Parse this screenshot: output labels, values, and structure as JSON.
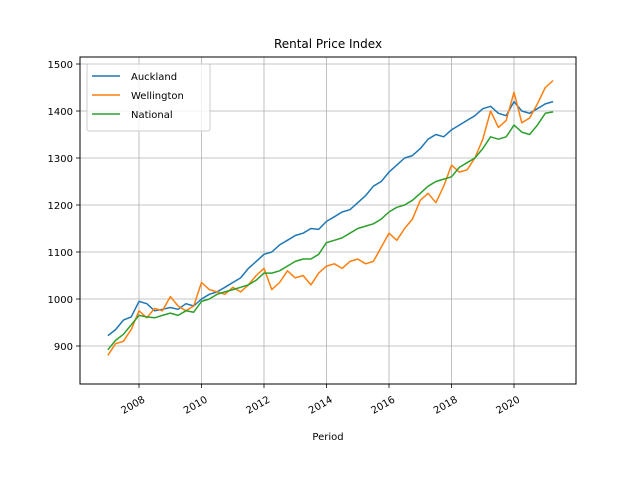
{
  "chart_data": {
    "type": "line",
    "title": "Rental Price Index",
    "xlabel": "Period",
    "ylabel": "",
    "xlim": [
      2006.6,
      2021.7
    ],
    "ylim": [
      823,
      1508
    ],
    "grid": true,
    "legend_position": "top-left",
    "x_ticks": [
      2008,
      2010,
      2012,
      2014,
      2016,
      2018,
      2020
    ],
    "x_tick_labels": [
      "2008",
      "2010",
      "2012",
      "2014",
      "2016",
      "2018",
      "2020"
    ],
    "y_ticks": [
      900,
      1000,
      1100,
      1200,
      1300,
      1400,
      1500
    ],
    "y_tick_labels": [
      "900",
      "1000",
      "1100",
      "1200",
      "1300",
      "1400",
      "1500"
    ],
    "x": [
      2007.0,
      2007.25,
      2007.5,
      2007.75,
      2008.0,
      2008.25,
      2008.5,
      2008.75,
      2009.0,
      2009.25,
      2009.5,
      2009.75,
      2010.0,
      2010.25,
      2010.5,
      2010.75,
      2011.0,
      2011.25,
      2011.5,
      2011.75,
      2012.0,
      2012.25,
      2012.5,
      2012.75,
      2013.0,
      2013.25,
      2013.5,
      2013.75,
      2014.0,
      2014.25,
      2014.5,
      2014.75,
      2015.0,
      2015.25,
      2015.5,
      2015.75,
      2016.0,
      2016.25,
      2016.5,
      2016.75,
      2017.0,
      2017.25,
      2017.5,
      2017.75,
      2018.0,
      2018.25,
      2018.5,
      2018.75,
      2019.0,
      2019.25,
      2019.5,
      2019.75,
      2020.0,
      2020.25,
      2020.5,
      2020.75,
      2021.0,
      2021.25
    ],
    "series": [
      {
        "name": "Auckland",
        "color": "#1f77b4",
        "values": [
          922,
          935,
          955,
          962,
          995,
          990,
          975,
          978,
          982,
          978,
          990,
          985,
          1000,
          1010,
          1015,
          1025,
          1035,
          1045,
          1065,
          1080,
          1095,
          1100,
          1115,
          1125,
          1135,
          1140,
          1150,
          1148,
          1165,
          1175,
          1185,
          1190,
          1205,
          1220,
          1240,
          1250,
          1270,
          1285,
          1300,
          1305,
          1320,
          1340,
          1350,
          1345,
          1360,
          1370,
          1380,
          1390,
          1405,
          1410,
          1395,
          1390,
          1420,
          1400,
          1395,
          1405,
          1415,
          1420
        ]
      },
      {
        "name": "Wellington",
        "color": "#ff7f0e",
        "values": [
          880,
          905,
          910,
          935,
          975,
          960,
          980,
          975,
          1005,
          985,
          975,
          985,
          1035,
          1020,
          1015,
          1010,
          1025,
          1015,
          1030,
          1050,
          1065,
          1020,
          1035,
          1060,
          1045,
          1050,
          1030,
          1055,
          1070,
          1075,
          1065,
          1080,
          1085,
          1075,
          1080,
          1110,
          1140,
          1125,
          1150,
          1170,
          1210,
          1225,
          1205,
          1240,
          1285,
          1270,
          1275,
          1300,
          1340,
          1400,
          1365,
          1380,
          1440,
          1375,
          1385,
          1415,
          1450,
          1465
        ]
      },
      {
        "name": "National",
        "color": "#2ca02c",
        "values": [
          892,
          912,
          925,
          945,
          965,
          962,
          960,
          965,
          970,
          965,
          975,
          972,
          995,
          1000,
          1010,
          1015,
          1020,
          1025,
          1030,
          1040,
          1055,
          1055,
          1060,
          1070,
          1080,
          1085,
          1085,
          1095,
          1120,
          1125,
          1130,
          1140,
          1150,
          1155,
          1160,
          1170,
          1185,
          1195,
          1200,
          1210,
          1225,
          1240,
          1250,
          1255,
          1260,
          1280,
          1290,
          1300,
          1320,
          1345,
          1340,
          1345,
          1370,
          1355,
          1350,
          1370,
          1395,
          1398
        ]
      }
    ]
  }
}
